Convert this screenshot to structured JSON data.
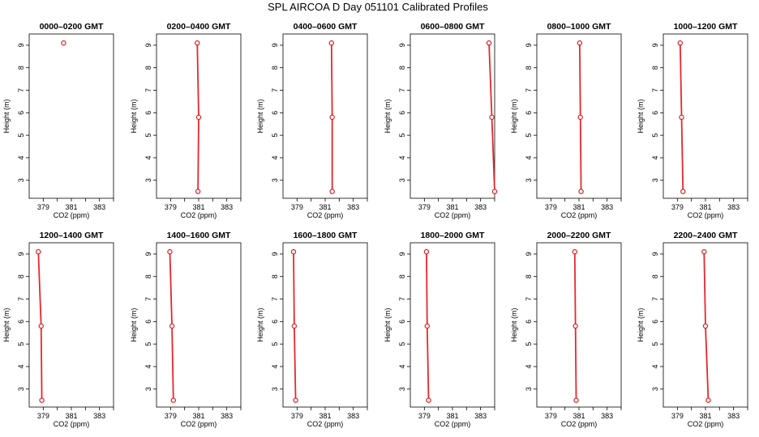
{
  "figure": {
    "title": "SPL AIRCOA D  Day 051101  Calibrated Profiles"
  },
  "chart_data": [
    {
      "type": "line",
      "title": "0000–0200 GMT",
      "xlabel": "CO2 (ppm)",
      "ylabel": "Height (m)",
      "xlim": [
        378.0,
        384.0
      ],
      "ylim": [
        2.2,
        9.5
      ],
      "xticks": [
        379,
        381,
        383
      ],
      "xticks_minor": [
        380,
        382,
        384
      ],
      "yticks": [
        3,
        4,
        5,
        6,
        7,
        8,
        9
      ],
      "series": [
        {
          "x": [
            380.45
          ],
          "y": [
            9.1
          ]
        }
      ]
    },
    {
      "type": "line",
      "title": "0200–0400 GMT",
      "xlabel": "CO2 (ppm)",
      "ylabel": "Height (m)",
      "xlim": [
        378.0,
        384.0
      ],
      "ylim": [
        2.2,
        9.5
      ],
      "xticks": [
        379,
        381,
        383
      ],
      "xticks_minor": [
        380,
        382,
        384
      ],
      "yticks": [
        3,
        4,
        5,
        6,
        7,
        8,
        9
      ],
      "series": [
        {
          "x": [
            380.9,
            381.0,
            380.95
          ],
          "y": [
            9.1,
            5.8,
            2.5
          ]
        }
      ]
    },
    {
      "type": "line",
      "title": "0400–0600 GMT",
      "xlabel": "CO2 (ppm)",
      "ylabel": "Height (m)",
      "xlim": [
        378.0,
        384.0
      ],
      "ylim": [
        2.2,
        9.5
      ],
      "xticks": [
        379,
        381,
        383
      ],
      "xticks_minor": [
        380,
        382,
        384
      ],
      "yticks": [
        3,
        4,
        5,
        6,
        7,
        8,
        9
      ],
      "series": [
        {
          "x": [
            381.45,
            381.5,
            381.5
          ],
          "y": [
            9.1,
            5.8,
            2.5
          ]
        }
      ]
    },
    {
      "type": "line",
      "title": "0600–0800 GMT",
      "xlabel": "CO2 (ppm)",
      "ylabel": "Height (m)",
      "xlim": [
        378.0,
        384.0
      ],
      "ylim": [
        2.2,
        9.5
      ],
      "xticks": [
        379,
        381,
        383
      ],
      "xticks_minor": [
        380,
        382,
        384
      ],
      "yticks": [
        3,
        4,
        5,
        6,
        7,
        8,
        9
      ],
      "series": [
        {
          "x": [
            383.6,
            383.8,
            384.0
          ],
          "y": [
            9.1,
            5.8,
            2.5
          ]
        }
      ]
    },
    {
      "type": "line",
      "title": "0800–1000 GMT",
      "xlabel": "CO2 (ppm)",
      "ylabel": "Height (m)",
      "xlim": [
        378.0,
        384.0
      ],
      "ylim": [
        2.2,
        9.5
      ],
      "xticks": [
        379,
        381,
        383
      ],
      "xticks_minor": [
        380,
        382,
        384
      ],
      "yticks": [
        3,
        4,
        5,
        6,
        7,
        8,
        9
      ],
      "series": [
        {
          "x": [
            381.05,
            381.1,
            381.15
          ],
          "y": [
            9.1,
            5.8,
            2.5
          ]
        }
      ]
    },
    {
      "type": "line",
      "title": "1000–1200 GMT",
      "xlabel": "CO2 (ppm)",
      "ylabel": "Height (m)",
      "xlim": [
        378.0,
        384.0
      ],
      "ylim": [
        2.2,
        9.5
      ],
      "xticks": [
        379,
        381,
        383
      ],
      "xticks_minor": [
        380,
        382,
        384
      ],
      "yticks": [
        3,
        4,
        5,
        6,
        7,
        8,
        9
      ],
      "series": [
        {
          "x": [
            379.2,
            379.3,
            379.4
          ],
          "y": [
            9.1,
            5.8,
            2.5
          ]
        }
      ]
    },
    {
      "type": "line",
      "title": "1200–1400 GMT",
      "xlabel": "CO2 (ppm)",
      "ylabel": "Height (m)",
      "xlim": [
        378.0,
        384.0
      ],
      "ylim": [
        2.2,
        9.5
      ],
      "xticks": [
        379,
        381,
        383
      ],
      "xticks_minor": [
        380,
        382,
        384
      ],
      "yticks": [
        3,
        4,
        5,
        6,
        7,
        8,
        9
      ],
      "series": [
        {
          "x": [
            378.65,
            378.85,
            378.9
          ],
          "y": [
            9.1,
            5.8,
            2.5
          ]
        }
      ]
    },
    {
      "type": "line",
      "title": "1400–1600 GMT",
      "xlabel": "CO2 (ppm)",
      "ylabel": "Height (m)",
      "xlim": [
        378.0,
        384.0
      ],
      "ylim": [
        2.2,
        9.5
      ],
      "xticks": [
        379,
        381,
        383
      ],
      "xticks_minor": [
        380,
        382,
        384
      ],
      "yticks": [
        3,
        4,
        5,
        6,
        7,
        8,
        9
      ],
      "series": [
        {
          "x": [
            378.95,
            379.1,
            379.2
          ],
          "y": [
            9.1,
            5.8,
            2.5
          ]
        }
      ]
    },
    {
      "type": "line",
      "title": "1600–1800 GMT",
      "xlabel": "CO2 (ppm)",
      "ylabel": "Height (m)",
      "xlim": [
        378.0,
        384.0
      ],
      "ylim": [
        2.2,
        9.5
      ],
      "xticks": [
        379,
        381,
        383
      ],
      "xticks_minor": [
        380,
        382,
        384
      ],
      "yticks": [
        3,
        4,
        5,
        6,
        7,
        8,
        9
      ],
      "series": [
        {
          "x": [
            378.75,
            378.8,
            378.9
          ],
          "y": [
            9.1,
            5.8,
            2.5
          ]
        }
      ]
    },
    {
      "type": "line",
      "title": "1800–2000 GMT",
      "xlabel": "CO2 (ppm)",
      "ylabel": "Height (m)",
      "xlim": [
        378.0,
        384.0
      ],
      "ylim": [
        2.2,
        9.5
      ],
      "xticks": [
        379,
        381,
        383
      ],
      "xticks_minor": [
        380,
        382,
        384
      ],
      "yticks": [
        3,
        4,
        5,
        6,
        7,
        8,
        9
      ],
      "series": [
        {
          "x": [
            379.15,
            379.2,
            379.3
          ],
          "y": [
            9.1,
            5.8,
            2.5
          ]
        }
      ]
    },
    {
      "type": "line",
      "title": "2000–2200 GMT",
      "xlabel": "CO2 (ppm)",
      "ylabel": "Height (m)",
      "xlim": [
        378.0,
        384.0
      ],
      "ylim": [
        2.2,
        9.5
      ],
      "xticks": [
        379,
        381,
        383
      ],
      "xticks_minor": [
        380,
        382,
        384
      ],
      "yticks": [
        3,
        4,
        5,
        6,
        7,
        8,
        9
      ],
      "series": [
        {
          "x": [
            380.7,
            380.75,
            380.8
          ],
          "y": [
            9.1,
            5.8,
            2.5
          ]
        }
      ]
    },
    {
      "type": "line",
      "title": "2200–2400 GMT",
      "xlabel": "CO2 (ppm)",
      "ylabel": "Height (m)",
      "xlim": [
        378.0,
        384.0
      ],
      "ylim": [
        2.2,
        9.5
      ],
      "xticks": [
        379,
        381,
        383
      ],
      "xticks_minor": [
        380,
        382,
        384
      ],
      "yticks": [
        3,
        4,
        5,
        6,
        7,
        8,
        9
      ],
      "series": [
        {
          "x": [
            380.9,
            381.0,
            381.2
          ],
          "y": [
            9.1,
            5.8,
            2.5
          ]
        }
      ]
    }
  ],
  "colors": {
    "profile_line": "#e8262c",
    "marker": "#d62020",
    "axis": "#000000"
  }
}
